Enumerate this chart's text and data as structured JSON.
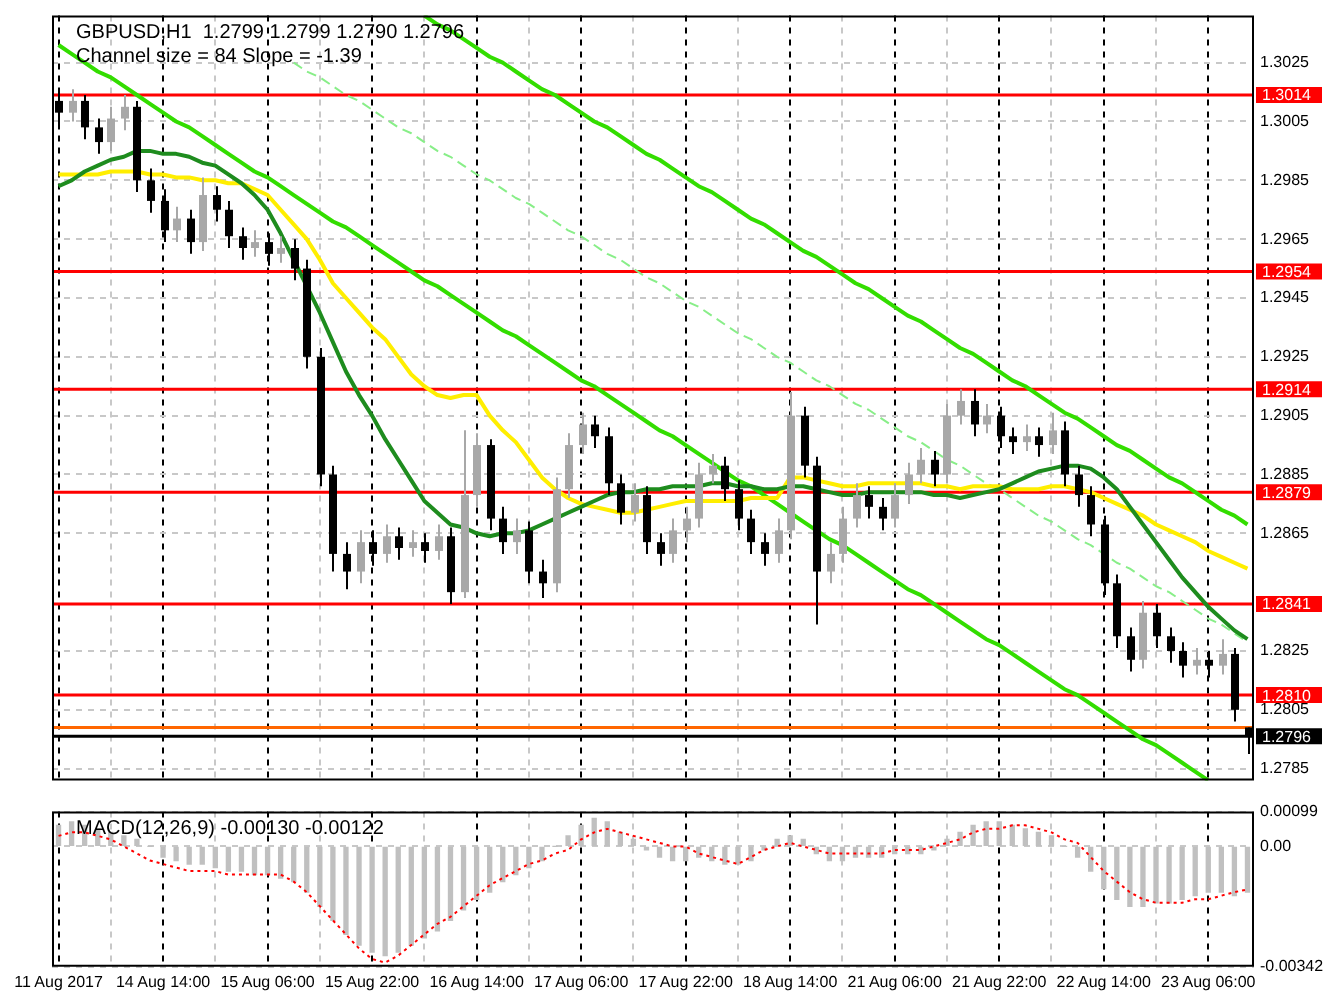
{
  "chart_data": [
    {
      "type": "candlestick",
      "title": "GBPUSD,H1  1.2799 1.2799 1.2790 1.2796",
      "subtitle": "Channel size = 84 Slope = -1.39",
      "categories": [
        null,
        null,
        null,
        null,
        null,
        null,
        null,
        null,
        null,
        null,
        null,
        null,
        null,
        null,
        null,
        null,
        null,
        null,
        null,
        null,
        null,
        null,
        null,
        null,
        null,
        null,
        null,
        null,
        null,
        null,
        null,
        null,
        null,
        null,
        null,
        null,
        null,
        null,
        null,
        null,
        null,
        null,
        null,
        null,
        null,
        null,
        null,
        null,
        null,
        null,
        null,
        null,
        null,
        null,
        null,
        null,
        null,
        null,
        null,
        null,
        null,
        null,
        null,
        null,
        null,
        null,
        null,
        null,
        null,
        null,
        null,
        null,
        null,
        null,
        null,
        null,
        null,
        null,
        null,
        null,
        null,
        null,
        null,
        null,
        null,
        null,
        null,
        null,
        null,
        null,
        null,
        null
      ],
      "ohlc": [
        [
          1.3012,
          1.3016,
          1.3004,
          1.3008
        ],
        [
          1.3008,
          1.3016,
          1.3005,
          1.3012
        ],
        [
          1.3012,
          1.3014,
          1.2999,
          1.3003
        ],
        [
          1.3003,
          1.3006,
          1.2994,
          1.2998
        ],
        [
          1.2998,
          1.301,
          1.2995,
          1.3006
        ],
        [
          1.3006,
          1.3014,
          1.3002,
          1.301
        ],
        [
          1.301,
          1.3012,
          1.2981,
          1.2985
        ],
        [
          1.2985,
          1.2989,
          1.2974,
          1.2978
        ],
        [
          1.2978,
          1.2982,
          1.2964,
          1.2968
        ],
        [
          1.2968,
          1.2976,
          1.2964,
          1.2972
        ],
        [
          1.2972,
          1.2975,
          1.296,
          1.2964
        ],
        [
          1.2964,
          1.2986,
          1.2961,
          1.298
        ],
        [
          1.298,
          1.2983,
          1.2971,
          1.2975
        ],
        [
          1.2975,
          1.2978,
          1.2962,
          1.2966
        ],
        [
          1.2966,
          1.2969,
          1.2958,
          1.2962
        ],
        [
          1.2962,
          1.2968,
          1.2959,
          1.2964
        ],
        [
          1.2964,
          1.2967,
          1.2956,
          1.296
        ],
        [
          1.296,
          1.2966,
          1.2957,
          1.2962
        ],
        [
          1.2962,
          1.2965,
          1.2951,
          1.2955
        ],
        [
          1.2955,
          1.2958,
          1.2921,
          1.2925
        ],
        [
          1.2925,
          1.2928,
          1.2881,
          1.2885
        ],
        [
          1.2885,
          1.2888,
          1.2852,
          1.2858
        ],
        [
          1.2858,
          1.2862,
          1.2846,
          1.2852
        ],
        [
          1.2852,
          1.2866,
          1.2848,
          1.2862
        ],
        [
          1.2862,
          1.2866,
          1.2854,
          1.2858
        ],
        [
          1.2858,
          1.2868,
          1.2855,
          1.2864
        ],
        [
          1.2864,
          1.2867,
          1.2856,
          1.286
        ],
        [
          1.286,
          1.2866,
          1.2857,
          1.2862
        ],
        [
          1.2862,
          1.2865,
          1.2855,
          1.2859
        ],
        [
          1.2859,
          1.2868,
          1.2856,
          1.2864
        ],
        [
          1.2864,
          1.2867,
          1.2841,
          1.2845
        ],
        [
          1.2845,
          1.29,
          1.2843,
          1.2878
        ],
        [
          1.2878,
          1.2899,
          1.2874,
          1.2895
        ],
        [
          1.2895,
          1.2897,
          1.2866,
          1.287
        ],
        [
          1.287,
          1.2874,
          1.2858,
          1.2862
        ],
        [
          1.2862,
          1.287,
          1.2858,
          1.2866
        ],
        [
          1.2866,
          1.2869,
          1.2848,
          1.2852
        ],
        [
          1.2852,
          1.2856,
          1.2843,
          1.2848
        ],
        [
          1.2848,
          1.2884,
          1.2845,
          1.288
        ],
        [
          1.288,
          1.2899,
          1.2877,
          1.2895
        ],
        [
          1.2895,
          1.2906,
          1.2892,
          1.2902
        ],
        [
          1.2902,
          1.2905,
          1.2894,
          1.2898
        ],
        [
          1.2898,
          1.2901,
          1.2878,
          1.2882
        ],
        [
          1.2882,
          1.2885,
          1.2868,
          1.2872
        ],
        [
          1.2872,
          1.2882,
          1.2869,
          1.2878
        ],
        [
          1.2878,
          1.2881,
          1.2858,
          1.2862
        ],
        [
          1.2862,
          1.2865,
          1.2854,
          1.2858
        ],
        [
          1.2858,
          1.287,
          1.2855,
          1.2866
        ],
        [
          1.2866,
          1.2874,
          1.2862,
          1.287
        ],
        [
          1.287,
          1.2889,
          1.2867,
          1.2885
        ],
        [
          1.2885,
          1.2892,
          1.2882,
          1.2888
        ],
        [
          1.2888,
          1.2891,
          1.2876,
          1.288
        ],
        [
          1.288,
          1.2883,
          1.2866,
          1.287
        ],
        [
          1.287,
          1.2873,
          1.2858,
          1.2862
        ],
        [
          1.2862,
          1.2865,
          1.2854,
          1.2858
        ],
        [
          1.2858,
          1.287,
          1.2855,
          1.2866
        ],
        [
          1.2866,
          1.2913,
          1.2863,
          1.2905
        ],
        [
          1.2905,
          1.2908,
          1.2884,
          1.2888
        ],
        [
          1.2888,
          1.2891,
          1.2834,
          1.2852
        ],
        [
          1.2852,
          1.2862,
          1.2848,
          1.2858
        ],
        [
          1.2858,
          1.2874,
          1.2855,
          1.287
        ],
        [
          1.287,
          1.2882,
          1.2867,
          1.2878
        ],
        [
          1.2878,
          1.2881,
          1.287,
          1.2874
        ],
        [
          1.2874,
          1.2877,
          1.2866,
          1.287
        ],
        [
          1.287,
          1.2882,
          1.2867,
          1.2878
        ],
        [
          1.2878,
          1.2889,
          1.2875,
          1.2885
        ],
        [
          1.2885,
          1.2894,
          1.2882,
          1.289
        ],
        [
          1.289,
          1.2893,
          1.2881,
          1.2885
        ],
        [
          1.2885,
          1.2909,
          1.2882,
          1.2905
        ],
        [
          1.2905,
          1.2914,
          1.2902,
          1.291
        ],
        [
          1.291,
          1.2914,
          1.2898,
          1.2902
        ],
        [
          1.2902,
          1.2909,
          1.2899,
          1.2905
        ],
        [
          1.2905,
          1.2908,
          1.2894,
          1.2898
        ],
        [
          1.2898,
          1.2901,
          1.2892,
          1.2896
        ],
        [
          1.2896,
          1.2902,
          1.2893,
          1.2898
        ],
        [
          1.2898,
          1.2901,
          1.2891,
          1.2895
        ],
        [
          1.2895,
          1.2906,
          1.2892,
          1.29
        ],
        [
          1.29,
          1.2903,
          1.2881,
          1.2885
        ],
        [
          1.2885,
          1.2888,
          1.2874,
          1.2878
        ],
        [
          1.2878,
          1.2881,
          1.2864,
          1.2868
        ],
        [
          1.2868,
          1.2871,
          1.2844,
          1.2848
        ],
        [
          1.2848,
          1.2851,
          1.2826,
          1.283
        ],
        [
          1.283,
          1.2833,
          1.2818,
          1.2822
        ],
        [
          1.2822,
          1.2842,
          1.2819,
          1.2838
        ],
        [
          1.2838,
          1.2841,
          1.2826,
          1.283
        ],
        [
          1.283,
          1.2833,
          1.2821,
          1.2825
        ],
        [
          1.2825,
          1.2828,
          1.2816,
          1.282
        ],
        [
          1.282,
          1.2826,
          1.2817,
          1.2822
        ],
        [
          1.2822,
          1.2825,
          1.2816,
          1.282
        ],
        [
          1.282,
          1.2829,
          1.2817,
          1.2824
        ],
        [
          1.2824,
          1.2826,
          1.2801,
          1.2805
        ],
        [
          1.2799,
          1.2799,
          1.279,
          1.2796
        ]
      ],
      "series": [
        {
          "type": "line",
          "color": "#1e8c1e",
          "values": [
            1.2983,
            1.2985,
            1.2988,
            1.299,
            1.2992,
            1.2993,
            1.2995,
            1.2995,
            1.2994,
            1.2994,
            1.2993,
            1.2991,
            1.299,
            1.2987,
            1.2984,
            1.298,
            1.2975,
            1.2967,
            1.2958,
            1.2949,
            1.294,
            1.293,
            1.292,
            1.2912,
            1.2905,
            1.2897,
            1.289,
            1.2883,
            1.2876,
            1.2872,
            1.2868,
            1.2867,
            1.2865,
            1.2864,
            1.2865,
            1.2865,
            1.2866,
            1.2868,
            1.287,
            1.2872,
            1.2874,
            1.2876,
            1.2878,
            1.2879,
            1.2879,
            1.288,
            1.288,
            1.2881,
            1.2881,
            1.2881,
            1.2882,
            1.2882,
            1.2881,
            1.2881,
            1.288,
            1.288,
            1.2881,
            1.2881,
            1.288,
            1.2879,
            1.2878,
            1.2878,
            1.2879,
            1.2879,
            1.2879,
            1.2879,
            1.2879,
            1.2878,
            1.2878,
            1.2877,
            1.2878,
            1.2879,
            1.288,
            1.2882,
            1.2884,
            1.2886,
            1.2887,
            1.2888,
            1.2888,
            1.2887,
            1.2884,
            1.288,
            1.2874,
            1.2868,
            1.2862,
            1.2856,
            1.285,
            1.2845,
            1.284,
            1.2836,
            1.2832,
            1.2829
          ]
        },
        {
          "type": "line",
          "color": "#ffee00",
          "values": [
            1.2987,
            1.2987,
            1.2987,
            1.2987,
            1.2988,
            1.2988,
            1.2988,
            1.2987,
            1.2987,
            1.2986,
            1.2986,
            1.2985,
            1.2985,
            1.2984,
            1.2984,
            1.2982,
            1.298,
            1.2975,
            1.297,
            1.2965,
            1.2958,
            1.295,
            1.2945,
            1.294,
            1.2935,
            1.2931,
            1.2925,
            1.2919,
            1.2915,
            1.2912,
            1.2911,
            1.2912,
            1.2912,
            1.2905,
            1.29,
            1.2896,
            1.289,
            1.2884,
            1.288,
            1.2877,
            1.2875,
            1.2874,
            1.2873,
            1.2872,
            1.2872,
            1.2873,
            1.2874,
            1.2875,
            1.2876,
            1.2876,
            1.2876,
            1.2876,
            1.2876,
            1.2877,
            1.2877,
            1.2877,
            1.2884,
            1.2884,
            1.2883,
            1.2882,
            1.2881,
            1.2881,
            1.2882,
            1.2882,
            1.2882,
            1.2882,
            1.2882,
            1.2881,
            1.2881,
            1.288,
            1.2881,
            1.2881,
            1.2881,
            1.288,
            1.288,
            1.288,
            1.2881,
            1.2881,
            1.288,
            1.2879,
            1.2877,
            1.2875,
            1.2873,
            1.2871,
            1.2868,
            1.2866,
            1.2864,
            1.2862,
            1.2859,
            1.2857,
            1.2855,
            1.2853
          ]
        },
        {
          "type": "line",
          "color": "#33dd00",
          "values": [
            null,
            null,
            null,
            null,
            null,
            null,
            null,
            null,
            null,
            null,
            null,
            null,
            null,
            null,
            null,
            null,
            null,
            null,
            null,
            null,
            null,
            null,
            null,
            null,
            null,
            null,
            null,
            null,
            1.3041,
            1.3038,
            1.3036,
            1.3033,
            1.303,
            1.3027,
            1.3025,
            1.3022,
            1.3019,
            1.3016,
            1.3014,
            1.3011,
            1.3008,
            1.3005,
            1.3003,
            1.3,
            1.2997,
            1.2994,
            1.2992,
            1.2989,
            1.2986,
            1.2983,
            1.2981,
            1.2978,
            1.2975,
            1.2972,
            1.297,
            1.2967,
            1.2964,
            1.2961,
            1.2959,
            1.2956,
            1.2953,
            1.295,
            1.2948,
            1.2945,
            1.2942,
            1.2939,
            1.2937,
            1.2934,
            1.2931,
            1.2928,
            1.2926,
            1.2923,
            1.292,
            1.2917,
            1.2915,
            1.2912,
            1.2909,
            1.2906,
            1.2904,
            1.2901,
            1.2898,
            1.2895,
            1.2893,
            1.289,
            1.2887,
            1.2884,
            1.2882,
            1.2879,
            1.2876,
            1.2873,
            1.2871,
            1.2868
          ]
        },
        {
          "type": "line",
          "color": "#33dd00",
          "values": [
            1.3031,
            1.3028,
            1.3025,
            1.3022,
            1.302,
            1.3017,
            1.3014,
            1.3011,
            1.3008,
            1.3005,
            1.3003,
            1.3,
            1.2997,
            1.2994,
            1.2991,
            1.2988,
            1.2986,
            1.2983,
            1.298,
            1.2977,
            1.2974,
            1.2971,
            1.2969,
            1.2966,
            1.2963,
            1.296,
            1.2957,
            1.2954,
            1.2951,
            1.2949,
            1.2946,
            1.2943,
            1.294,
            1.2937,
            1.2934,
            1.2932,
            1.2929,
            1.2926,
            1.2923,
            1.292,
            1.2917,
            1.2915,
            1.2912,
            1.2909,
            1.2906,
            1.2903,
            1.29,
            1.2898,
            1.2895,
            1.2892,
            1.2889,
            1.2886,
            1.2883,
            1.2881,
            1.2878,
            1.2875,
            1.2872,
            1.2869,
            1.2866,
            1.2863,
            1.2861,
            1.2858,
            1.2855,
            1.2852,
            1.2849,
            1.2846,
            1.2844,
            1.2841,
            1.2838,
            1.2835,
            1.2832,
            1.2829,
            1.2827,
            1.2824,
            1.2821,
            1.2818,
            1.2815,
            1.2812,
            1.281,
            1.2807,
            1.2804,
            1.2801,
            1.2798,
            1.2795,
            1.2793,
            1.279,
            1.2787,
            1.2784,
            1.2781,
            null,
            null,
            null
          ]
        },
        {
          "type": "line",
          "color": "#88ee88",
          "line_style": "dashed",
          "values": [
            null,
            null,
            null,
            null,
            null,
            null,
            null,
            null,
            null,
            null,
            null,
            null,
            null,
            null,
            null,
            null,
            null,
            null,
            1.3025,
            1.3022,
            1.302,
            1.3017,
            1.3014,
            1.3012,
            1.3009,
            1.3006,
            1.3003,
            1.3001,
            1.2998,
            1.2995,
            1.2993,
            1.299,
            1.2987,
            1.2985,
            1.2982,
            1.2979,
            1.2977,
            1.2974,
            1.2971,
            1.2968,
            1.2966,
            1.2963,
            1.296,
            1.2958,
            1.2955,
            1.2952,
            1.295,
            1.2947,
            1.2944,
            1.2942,
            1.2939,
            1.2936,
            1.2933,
            1.2931,
            1.2928,
            1.2925,
            1.2923,
            1.292,
            1.2917,
            1.2915,
            1.2912,
            1.2909,
            1.2907,
            1.2904,
            1.2901,
            1.2898,
            1.2896,
            1.2893,
            1.289,
            1.2888,
            1.2885,
            1.2882,
            1.288,
            1.2877,
            1.2874,
            1.2871,
            1.2869,
            1.2866,
            1.2863,
            1.2861,
            1.2858,
            1.2855,
            1.2853,
            1.285,
            1.2847,
            1.2845,
            1.2842,
            1.2839,
            1.2836,
            1.2834,
            1.2831,
            1.2828
          ]
        }
      ],
      "ylim": [
        1.2781,
        1.3041
      ],
      "yticks": [
        1.2785,
        1.2805,
        1.2825,
        1.2865,
        1.2885,
        1.2905,
        1.2925,
        1.2945,
        1.2965,
        1.2985,
        1.3005,
        1.3025
      ],
      "ref_lines": [
        {
          "axis": "y",
          "value": 1.3014,
          "label": "1.3014",
          "color": "#ff0000"
        },
        {
          "axis": "y",
          "value": 1.2954,
          "label": "1.2954",
          "color": "#ff0000"
        },
        {
          "axis": "y",
          "value": 1.2914,
          "label": "1.2914",
          "color": "#ff0000"
        },
        {
          "axis": "y",
          "value": 1.2879,
          "label": "1.2879",
          "color": "#ff0000"
        },
        {
          "axis": "y",
          "value": 1.2841,
          "label": "1.2841",
          "color": "#ff0000"
        },
        {
          "axis": "y",
          "value": 1.281,
          "label": "1.2810",
          "color": "#ff0000"
        },
        {
          "axis": "y",
          "value": 1.2799,
          "color": "#ff6600"
        },
        {
          "axis": "y",
          "value": 1.2796,
          "label": "1.2796",
          "color": "#000000"
        }
      ],
      "marker": "none",
      "grid": true,
      "legend": false,
      "tick_labels": "y"
    },
    {
      "type": "bar",
      "title": "MACD(12,26,9) -0.00130 -0.00122",
      "categories": [
        "11 Aug 2017",
        null,
        null,
        null,
        null,
        null,
        null,
        null,
        "14 Aug 14:00",
        null,
        null,
        null,
        null,
        null,
        null,
        null,
        "15 Aug 06:00",
        null,
        null,
        null,
        null,
        null,
        null,
        null,
        "15 Aug 22:00",
        null,
        null,
        null,
        null,
        null,
        null,
        null,
        "16 Aug 14:00",
        null,
        null,
        null,
        null,
        null,
        null,
        null,
        "17 Aug 06:00",
        null,
        null,
        null,
        null,
        null,
        null,
        null,
        "17 Aug 22:00",
        null,
        null,
        null,
        null,
        null,
        null,
        null,
        "18 Aug 14:00",
        null,
        null,
        null,
        null,
        null,
        null,
        null,
        "21 Aug 06:00",
        null,
        null,
        null,
        null,
        null,
        null,
        null,
        "21 Aug 22:00",
        null,
        null,
        null,
        null,
        null,
        null,
        null,
        "22 Aug 14:00",
        null,
        null,
        null,
        null,
        null,
        null,
        null,
        "23 Aug 06:00",
        null,
        null,
        null
      ],
      "series": [
        {
          "type": "bar",
          "color": "#c0c0c0",
          "values": [
            0.0006,
            0.0007,
            0.0006,
            0.0005,
            0.0004,
            0.0003,
            0.0002,
            0.0,
            -0.0003,
            -0.0004,
            -0.0005,
            -0.0005,
            -0.0006,
            -0.0007,
            -0.0007,
            -0.0008,
            -0.0008,
            -0.0009,
            -0.001,
            -0.0013,
            -0.0017,
            -0.0021,
            -0.0025,
            -0.0028,
            -0.003,
            -0.0031,
            -0.003,
            -0.0028,
            -0.0026,
            -0.0024,
            -0.0021,
            -0.0018,
            -0.0015,
            -0.0013,
            -0.001,
            -0.0008,
            -0.0006,
            -0.0004,
            0.0,
            0.0003,
            0.0006,
            0.0008,
            0.0007,
            0.0004,
            0.0002,
            -0.0001,
            -0.0003,
            -0.0004,
            -0.0004,
            -0.0003,
            -0.0004,
            -0.0005,
            -0.0005,
            -0.0004,
            -0.0001,
            0.0002,
            0.0003,
            0.0002,
            -0.0002,
            -0.0004,
            -0.0004,
            -0.0003,
            -0.0003,
            -0.0003,
            -0.0002,
            -0.0002,
            -0.0002,
            -0.0001,
            0.0002,
            0.0004,
            0.0006,
            0.0007,
            0.0007,
            0.0006,
            0.0005,
            0.0004,
            0.0003,
            0.0,
            -0.0003,
            -0.0007,
            -0.0012,
            -0.0015,
            -0.0017,
            -0.0017,
            -0.0016,
            -0.0016,
            -0.0015,
            -0.0014,
            -0.0013,
            -0.0013,
            -0.0014,
            -0.0013
          ]
        },
        {
          "type": "line",
          "color": "#ff0000",
          "line_style": "dotted",
          "values": [
            0.0003,
            0.0004,
            0.0004,
            0.0003,
            0.0002,
            0.0,
            -0.0002,
            -0.0004,
            -0.0005,
            -0.0006,
            -0.0007,
            -0.0007,
            -0.0007,
            -0.0008,
            -0.0008,
            -0.0008,
            -0.0008,
            -0.0008,
            -0.001,
            -0.0013,
            -0.0017,
            -0.0021,
            -0.0025,
            -0.0029,
            -0.0032,
            -0.0033,
            -0.0031,
            -0.0028,
            -0.0025,
            -0.0022,
            -0.002,
            -0.0017,
            -0.0014,
            -0.0011,
            -0.0009,
            -0.0007,
            -0.0005,
            -0.0004,
            -0.0002,
            -0.0001,
            0.0002,
            0.0004,
            0.0005,
            0.0004,
            0.0003,
            0.0002,
            0.0001,
            0.0,
            0.0,
            -0.0002,
            -0.0003,
            -0.0004,
            -0.0005,
            -0.0003,
            -0.0001,
            0.0,
            0.0001,
            0.0,
            -0.0001,
            -0.0002,
            -0.0002,
            -0.0002,
            -0.0002,
            -0.0002,
            -0.0001,
            -0.0001,
            -0.0001,
            0.0,
            0.0001,
            0.0002,
            0.0004,
            0.0005,
            0.0005,
            0.0006,
            0.0006,
            0.0005,
            0.0004,
            0.0002,
            0.0001,
            -0.0003,
            -0.0007,
            -0.001,
            -0.0013,
            -0.0015,
            -0.0016,
            -0.0016,
            -0.0016,
            -0.0015,
            -0.0015,
            -0.0014,
            -0.0013,
            -0.00122
          ]
        }
      ],
      "ylim": [
        -0.00342,
        0.00099
      ],
      "yticks": [
        -0.00342,
        {
          "value": 0,
          "label": "0.00"
        },
        0.00099
      ],
      "marker": "none",
      "grid": true,
      "legend": false
    }
  ]
}
